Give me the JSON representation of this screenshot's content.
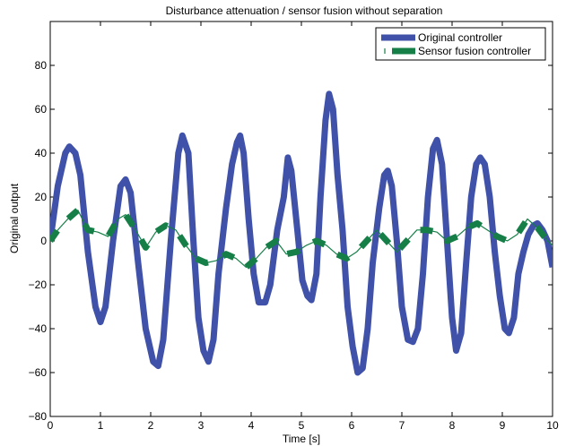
{
  "chart_data": {
    "type": "line",
    "title": "Disturbance attenuation / sensor fusion without separation",
    "xlabel": "Time [s]",
    "ylabel": "Original output",
    "xlim": [
      0,
      10
    ],
    "ylim": [
      -80,
      100
    ],
    "x_ticks": [
      0,
      1,
      2,
      3,
      4,
      5,
      6,
      7,
      8,
      9,
      10
    ],
    "y_ticks": [
      -80,
      -60,
      -40,
      -20,
      0,
      20,
      40,
      60,
      80
    ],
    "legend_position": "top-right",
    "series": [
      {
        "name": "Original controller",
        "color": "#3f51a8",
        "style": "solid",
        "points": [
          [
            0.0,
            0
          ],
          [
            0.15,
            25
          ],
          [
            0.3,
            40
          ],
          [
            0.38,
            43
          ],
          [
            0.5,
            40
          ],
          [
            0.6,
            30
          ],
          [
            0.75,
            -5
          ],
          [
            0.9,
            -30
          ],
          [
            1.0,
            -37
          ],
          [
            1.1,
            -30
          ],
          [
            1.25,
            0
          ],
          [
            1.4,
            25
          ],
          [
            1.5,
            28
          ],
          [
            1.6,
            22
          ],
          [
            1.75,
            -10
          ],
          [
            1.9,
            -40
          ],
          [
            2.05,
            -55
          ],
          [
            2.15,
            -57
          ],
          [
            2.25,
            -45
          ],
          [
            2.4,
            0
          ],
          [
            2.55,
            40
          ],
          [
            2.63,
            48
          ],
          [
            2.75,
            40
          ],
          [
            2.85,
            0
          ],
          [
            2.95,
            -35
          ],
          [
            3.05,
            -50
          ],
          [
            3.15,
            -55
          ],
          [
            3.25,
            -45
          ],
          [
            3.35,
            -15
          ],
          [
            3.5,
            15
          ],
          [
            3.62,
            35
          ],
          [
            3.72,
            45
          ],
          [
            3.78,
            48
          ],
          [
            3.85,
            40
          ],
          [
            3.95,
            10
          ],
          [
            4.05,
            -15
          ],
          [
            4.15,
            -28
          ],
          [
            4.28,
            -28
          ],
          [
            4.38,
            -20
          ],
          [
            4.52,
            5
          ],
          [
            4.65,
            20
          ],
          [
            4.73,
            38
          ],
          [
            4.8,
            32
          ],
          [
            4.92,
            5
          ],
          [
            5.02,
            -18
          ],
          [
            5.12,
            -25
          ],
          [
            5.2,
            -27
          ],
          [
            5.3,
            -15
          ],
          [
            5.38,
            20
          ],
          [
            5.48,
            55
          ],
          [
            5.55,
            67
          ],
          [
            5.63,
            60
          ],
          [
            5.72,
            30
          ],
          [
            5.82,
            5
          ],
          [
            5.92,
            -30
          ],
          [
            6.02,
            -48
          ],
          [
            6.12,
            -60
          ],
          [
            6.22,
            -58
          ],
          [
            6.32,
            -40
          ],
          [
            6.42,
            -10
          ],
          [
            6.55,
            15
          ],
          [
            6.65,
            30
          ],
          [
            6.72,
            32
          ],
          [
            6.8,
            25
          ],
          [
            6.9,
            0
          ],
          [
            7.0,
            -30
          ],
          [
            7.12,
            -45
          ],
          [
            7.22,
            -46
          ],
          [
            7.32,
            -40
          ],
          [
            7.42,
            -15
          ],
          [
            7.52,
            20
          ],
          [
            7.62,
            42
          ],
          [
            7.7,
            46
          ],
          [
            7.8,
            35
          ],
          [
            7.9,
            0
          ],
          [
            8.0,
            -35
          ],
          [
            8.08,
            -50
          ],
          [
            8.18,
            -42
          ],
          [
            8.28,
            -10
          ],
          [
            8.38,
            20
          ],
          [
            8.48,
            35
          ],
          [
            8.56,
            38
          ],
          [
            8.65,
            35
          ],
          [
            8.75,
            20
          ],
          [
            8.85,
            -5
          ],
          [
            8.95,
            -25
          ],
          [
            9.05,
            -40
          ],
          [
            9.13,
            -42
          ],
          [
            9.23,
            -35
          ],
          [
            9.32,
            -15
          ],
          [
            9.42,
            -5
          ],
          [
            9.52,
            3
          ],
          [
            9.62,
            7
          ],
          [
            9.7,
            8
          ],
          [
            9.8,
            5
          ],
          [
            9.9,
            0
          ],
          [
            10.0,
            -12
          ]
        ]
      },
      {
        "name": "Sensor fusion controller",
        "color": "#167f48",
        "style": "dashed",
        "points": [
          [
            0.0,
            0
          ],
          [
            0.15,
            5
          ],
          [
            0.35,
            10
          ],
          [
            0.55,
            14
          ],
          [
            0.75,
            5
          ],
          [
            0.95,
            4
          ],
          [
            1.15,
            2
          ],
          [
            1.35,
            10
          ],
          [
            1.5,
            12
          ],
          [
            1.7,
            5
          ],
          [
            1.9,
            -3
          ],
          [
            2.1,
            4
          ],
          [
            2.3,
            7
          ],
          [
            2.5,
            5
          ],
          [
            2.7,
            -2
          ],
          [
            2.9,
            -8
          ],
          [
            3.1,
            -10
          ],
          [
            3.3,
            -9
          ],
          [
            3.5,
            -6
          ],
          [
            3.7,
            -8
          ],
          [
            3.9,
            -12
          ],
          [
            4.1,
            -8
          ],
          [
            4.3,
            -3
          ],
          [
            4.5,
            0
          ],
          [
            4.7,
            -6
          ],
          [
            4.9,
            -5
          ],
          [
            5.1,
            -2
          ],
          [
            5.3,
            0
          ],
          [
            5.5,
            -2
          ],
          [
            5.7,
            -6
          ],
          [
            5.9,
            -8
          ],
          [
            6.1,
            -5
          ],
          [
            6.3,
            0
          ],
          [
            6.5,
            5
          ],
          [
            6.7,
            0
          ],
          [
            6.9,
            -5
          ],
          [
            7.1,
            0
          ],
          [
            7.3,
            5
          ],
          [
            7.5,
            5
          ],
          [
            7.7,
            4
          ],
          [
            7.9,
            0
          ],
          [
            8.1,
            2
          ],
          [
            8.3,
            6
          ],
          [
            8.5,
            8
          ],
          [
            8.7,
            5
          ],
          [
            8.9,
            2
          ],
          [
            9.1,
            0
          ],
          [
            9.3,
            3
          ],
          [
            9.5,
            10
          ],
          [
            9.7,
            6
          ],
          [
            9.9,
            0
          ],
          [
            10.0,
            -2
          ]
        ]
      }
    ]
  }
}
